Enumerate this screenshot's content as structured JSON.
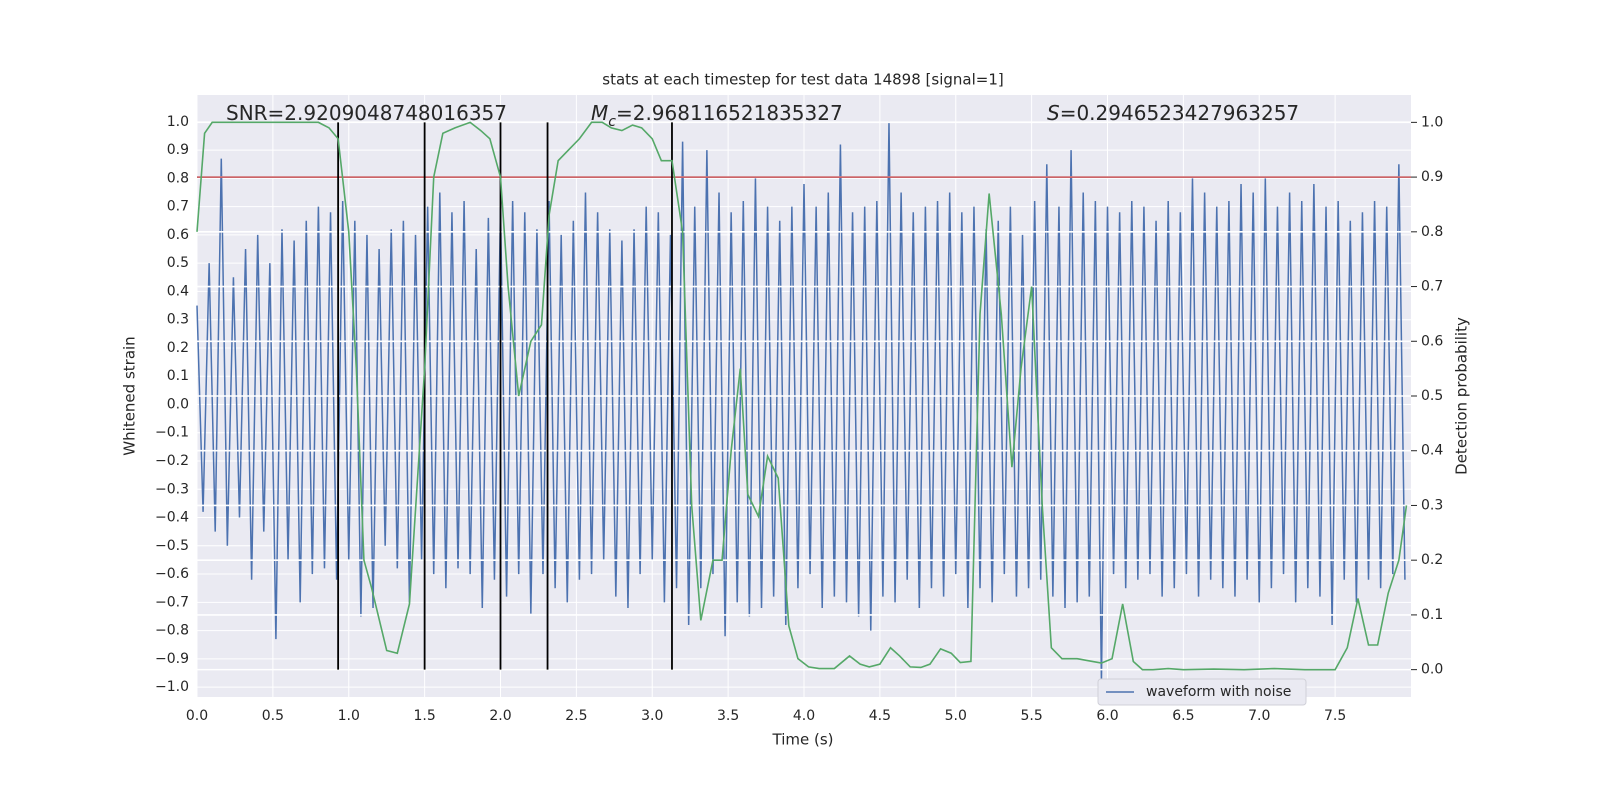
{
  "chart_data": {
    "type": "line",
    "title": "stats at each timestep for test data 14898 [signal=1]",
    "xlabel": "Time (s)",
    "ylabel": "Whitened strain",
    "y2label": "Detection probability",
    "annotations": [
      {
        "text": "SNR=2.9209048748016357"
      },
      {
        "symbol": "M",
        "sub": "c",
        "text": "=2.968116521835327"
      },
      {
        "symbol": "S",
        "text": "=0.2946523427963257"
      }
    ],
    "xlim": [
      0,
      8.0
    ],
    "ylim": [
      -1.035,
      1.095
    ],
    "y2lim": [
      -0.05,
      1.05
    ],
    "xticks": [
      {
        "value": 0,
        "label": "0.0"
      },
      {
        "value": 0.5,
        "label": "0.5"
      },
      {
        "value": 1,
        "label": "1.0"
      },
      {
        "value": 1.5,
        "label": "1.5"
      },
      {
        "value": 2,
        "label": "2.0"
      },
      {
        "value": 2.5,
        "label": "2.5"
      },
      {
        "value": 3,
        "label": "3.0"
      },
      {
        "value": 3.5,
        "label": "3.5"
      },
      {
        "value": 4,
        "label": "4.0"
      },
      {
        "value": 4.5,
        "label": "4.5"
      },
      {
        "value": 5,
        "label": "5.0"
      },
      {
        "value": 5.5,
        "label": "5.5"
      },
      {
        "value": 6,
        "label": "6.0"
      },
      {
        "value": 6.5,
        "label": "6.5"
      },
      {
        "value": 7,
        "label": "7.0"
      },
      {
        "value": 7.5,
        "label": "7.5"
      }
    ],
    "yticks": [
      {
        "value": 1,
        "label": "1.0"
      },
      {
        "value": 0.9,
        "label": "0.9"
      },
      {
        "value": 0.8,
        "label": "0.8"
      },
      {
        "value": 0.7,
        "label": "0.7"
      },
      {
        "value": 0.6,
        "label": "0.6"
      },
      {
        "value": 0.5,
        "label": "0.5"
      },
      {
        "value": 0.4,
        "label": "0.4"
      },
      {
        "value": 0.3,
        "label": "0.3"
      },
      {
        "value": 0.2,
        "label": "0.2"
      },
      {
        "value": 0.1,
        "label": "0.1"
      },
      {
        "value": 0,
        "label": "0.0"
      },
      {
        "value": -0.1,
        "label": "−0.1"
      },
      {
        "value": -0.2,
        "label": "−0.2"
      },
      {
        "value": -0.3,
        "label": "−0.3"
      },
      {
        "value": -0.4,
        "label": "−0.4"
      },
      {
        "value": -0.5,
        "label": "−0.5"
      },
      {
        "value": -0.6,
        "label": "−0.6"
      },
      {
        "value": -0.7,
        "label": "−0.7"
      },
      {
        "value": -0.8,
        "label": "−0.8"
      },
      {
        "value": -0.9,
        "label": "−0.9"
      },
      {
        "value": -1,
        "label": "−1.0"
      }
    ],
    "y2ticks": [
      {
        "value": 0,
        "label": "0.0"
      },
      {
        "value": 0.1,
        "label": "0.1"
      },
      {
        "value": 0.2,
        "label": "0.2"
      },
      {
        "value": 0.3,
        "label": "0.3"
      },
      {
        "value": 0.4,
        "label": "0.4"
      },
      {
        "value": 0.5,
        "label": "0.5"
      },
      {
        "value": 0.6,
        "label": "0.6"
      },
      {
        "value": 0.7,
        "label": "0.7"
      },
      {
        "value": 0.8,
        "label": "0.8"
      },
      {
        "value": 0.9,
        "label": "0.9"
      },
      {
        "value": 1,
        "label": "1.0"
      }
    ],
    "grid": true,
    "series": [
      {
        "name": "waveform with noise",
        "color": "#4c72b0",
        "x": [
          0,
          0.04,
          0.08,
          0.12,
          0.16,
          0.2,
          0.24,
          0.28,
          0.32,
          0.36,
          0.4,
          0.44,
          0.48,
          0.52,
          0.56,
          0.6,
          0.64,
          0.68,
          0.72,
          0.76,
          0.8,
          0.84,
          0.88,
          0.92,
          0.96,
          1,
          1.04,
          1.08,
          1.12,
          1.16,
          1.2,
          1.24,
          1.28,
          1.32,
          1.36,
          1.4,
          1.44,
          1.48,
          1.52,
          1.56,
          1.6,
          1.64,
          1.68,
          1.72,
          1.76,
          1.8,
          1.84,
          1.88,
          1.92,
          1.96,
          2,
          2.04,
          2.08,
          2.12,
          2.16,
          2.2,
          2.24,
          2.28,
          2.32,
          2.36,
          2.4,
          2.44,
          2.48,
          2.52,
          2.56,
          2.6,
          2.64,
          2.68,
          2.72,
          2.76,
          2.8,
          2.84,
          2.88,
          2.92,
          2.96,
          3,
          3.04,
          3.08,
          3.12,
          3.16,
          3.2,
          3.24,
          3.28,
          3.32,
          3.36,
          3.4,
          3.44,
          3.48,
          3.52,
          3.56,
          3.6,
          3.64,
          3.68,
          3.72,
          3.76,
          3.8,
          3.84,
          3.88,
          3.92,
          3.96,
          4,
          4.04,
          4.08,
          4.12,
          4.16,
          4.2,
          4.24,
          4.28,
          4.32,
          4.36,
          4.4,
          4.44,
          4.48,
          4.52,
          4.56,
          4.6,
          4.64,
          4.68,
          4.72,
          4.76,
          4.8,
          4.84,
          4.88,
          4.92,
          4.96,
          5,
          5.04,
          5.08,
          5.12,
          5.16,
          5.2,
          5.24,
          5.28,
          5.32,
          5.36,
          5.4,
          5.44,
          5.48,
          5.52,
          5.56,
          5.6,
          5.64,
          5.68,
          5.72,
          5.76,
          5.8,
          5.84,
          5.88,
          5.92,
          5.96,
          6,
          6.04,
          6.08,
          6.12,
          6.16,
          6.2,
          6.24,
          6.28,
          6.32,
          6.36,
          6.4,
          6.44,
          6.48,
          6.52,
          6.56,
          6.6,
          6.64,
          6.68,
          6.72,
          6.76,
          6.8,
          6.84,
          6.88,
          6.92,
          6.96,
          7,
          7.04,
          7.08,
          7.12,
          7.16,
          7.2,
          7.24,
          7.28,
          7.32,
          7.36,
          7.4,
          7.44,
          7.48,
          7.52,
          7.56,
          7.6,
          7.64,
          7.68,
          7.72,
          7.76,
          7.8,
          7.84,
          7.88,
          7.92,
          7.96
        ],
        "values": [
          0.35,
          -0.38,
          0.5,
          -0.45,
          0.87,
          -0.5,
          0.45,
          -0.4,
          0.55,
          -0.62,
          0.6,
          -0.45,
          0.5,
          -0.83,
          0.62,
          -0.55,
          0.58,
          -0.7,
          0.65,
          -0.6,
          0.7,
          -0.58,
          0.68,
          -0.62,
          0.72,
          -0.55,
          0.65,
          -0.75,
          0.6,
          -0.72,
          0.55,
          -0.5,
          0.62,
          -0.58,
          0.65,
          -0.7,
          0.6,
          -0.55,
          0.7,
          -0.6,
          0.75,
          -0.65,
          0.68,
          -0.58,
          0.72,
          -0.6,
          0.55,
          -0.72,
          0.66,
          -0.62,
          0.7,
          -0.68,
          0.72,
          -0.6,
          0.68,
          -0.74,
          0.62,
          -0.6,
          0.72,
          -0.65,
          0.6,
          -0.7,
          0.65,
          -0.62,
          0.75,
          -0.6,
          0.68,
          -0.55,
          0.62,
          -0.68,
          0.58,
          -0.72,
          0.62,
          -0.6,
          0.7,
          -0.55,
          0.68,
          -0.7,
          0.6,
          -0.65,
          0.93,
          -0.78,
          0.7,
          -0.65,
          0.9,
          -0.6,
          0.75,
          -0.82,
          0.68,
          -0.7,
          0.72,
          -0.75,
          0.8,
          -0.72,
          0.7,
          -0.68,
          0.65,
          -0.78,
          0.7,
          -0.65,
          0.78,
          -0.6,
          0.7,
          -0.72,
          0.75,
          -0.68,
          0.92,
          -0.7,
          0.68,
          -0.75,
          0.7,
          -0.8,
          0.72,
          -0.68,
          1.0,
          -0.7,
          0.75,
          -0.62,
          0.68,
          -0.72,
          0.7,
          -0.65,
          0.72,
          -0.68,
          0.75,
          -0.6,
          0.68,
          -0.72,
          0.7,
          -0.65,
          0.62,
          -0.7,
          0.65,
          -0.6,
          0.7,
          -0.68,
          0.6,
          -0.65,
          0.72,
          -0.62,
          0.85,
          -0.68,
          0.7,
          -0.72,
          0.9,
          -0.7,
          0.75,
          -0.68,
          0.72,
          -0.98,
          0.7,
          -0.6,
          0.68,
          -0.65,
          0.72,
          -0.62,
          0.7,
          -0.6,
          0.65,
          -0.68,
          0.72,
          -0.65,
          0.68,
          -0.6,
          0.8,
          -0.68,
          0.75,
          -0.62,
          0.7,
          -0.65,
          0.72,
          -0.68,
          0.78,
          -0.62,
          0.75,
          -0.7,
          0.8,
          -0.65,
          0.7,
          -0.6,
          0.75,
          -0.7,
          0.72,
          -0.65,
          0.78,
          -0.68,
          0.7,
          -0.78,
          0.72,
          -0.62,
          0.65,
          -0.7,
          0.68,
          -0.62,
          0.72,
          -0.65,
          0.7,
          -0.6,
          0.85,
          -0.62
        ]
      },
      {
        "color": "#55a868",
        "axis": "y2",
        "x": [
          0,
          0.05,
          0.1,
          0.2,
          0.4,
          0.6,
          0.8,
          0.87,
          0.93,
          1.0,
          1.05,
          1.1,
          1.15,
          1.25,
          1.32,
          1.4,
          1.5,
          1.56,
          1.62,
          1.7,
          1.8,
          1.87,
          1.93,
          2.0,
          2.05,
          2.12,
          2.2,
          2.27,
          2.32,
          2.38,
          2.45,
          2.52,
          2.6,
          2.67,
          2.73,
          2.8,
          2.87,
          2.93,
          3.0,
          3.06,
          3.13,
          3.2,
          3.26,
          3.32,
          3.4,
          3.46,
          3.52,
          3.58,
          3.63,
          3.7,
          3.76,
          3.83,
          3.9,
          3.96,
          4.03,
          4.1,
          4.2,
          4.3,
          4.37,
          4.43,
          4.5,
          4.57,
          4.63,
          4.7,
          4.77,
          4.83,
          4.9,
          4.97,
          5.03,
          5.1,
          5.16,
          5.22,
          5.3,
          5.37,
          5.43,
          5.5,
          5.57,
          5.63,
          5.7,
          5.8,
          5.9,
          5.96,
          6.03,
          6.1,
          6.17,
          6.23,
          6.3,
          6.4,
          6.5,
          6.7,
          6.9,
          7.1,
          7.3,
          7.5,
          7.58,
          7.65,
          7.72,
          7.78,
          7.85,
          7.92,
          7.97
        ],
        "values": [
          0.8,
          0.98,
          1.0,
          1.0,
          1.0,
          1.0,
          1.0,
          0.99,
          0.97,
          0.8,
          0.55,
          0.2,
          0.15,
          0.035,
          0.03,
          0.12,
          0.55,
          0.9,
          0.98,
          0.99,
          1.0,
          0.985,
          0.97,
          0.9,
          0.7,
          0.5,
          0.6,
          0.63,
          0.83,
          0.93,
          0.95,
          0.97,
          1.0,
          1.0,
          0.99,
          0.985,
          0.995,
          0.99,
          0.97,
          0.93,
          0.93,
          0.8,
          0.3,
          0.09,
          0.2,
          0.2,
          0.4,
          0.55,
          0.32,
          0.28,
          0.39,
          0.35,
          0.08,
          0.02,
          0.005,
          0.002,
          0.002,
          0.025,
          0.01,
          0.005,
          0.01,
          0.04,
          0.025,
          0.005,
          0.004,
          0.01,
          0.038,
          0.03,
          0.013,
          0.015,
          0.65,
          0.87,
          0.65,
          0.37,
          0.55,
          0.7,
          0.3,
          0.04,
          0.02,
          0.02,
          0.015,
          0.012,
          0.02,
          0.12,
          0.015,
          0.0,
          0.0,
          0.002,
          0.0,
          0.001,
          0.0,
          0.002,
          0.0,
          0.0,
          0.04,
          0.13,
          0.045,
          0.045,
          0.14,
          0.2,
          0.3
        ]
      }
    ],
    "hlines": [
      {
        "y2": 0.9,
        "color": "#c44e52"
      }
    ],
    "vlines": [
      0.93,
      1.5,
      2.0,
      2.31,
      3.13
    ],
    "vline_y2": [
      0,
      1
    ],
    "vline_color": "#000000"
  }
}
